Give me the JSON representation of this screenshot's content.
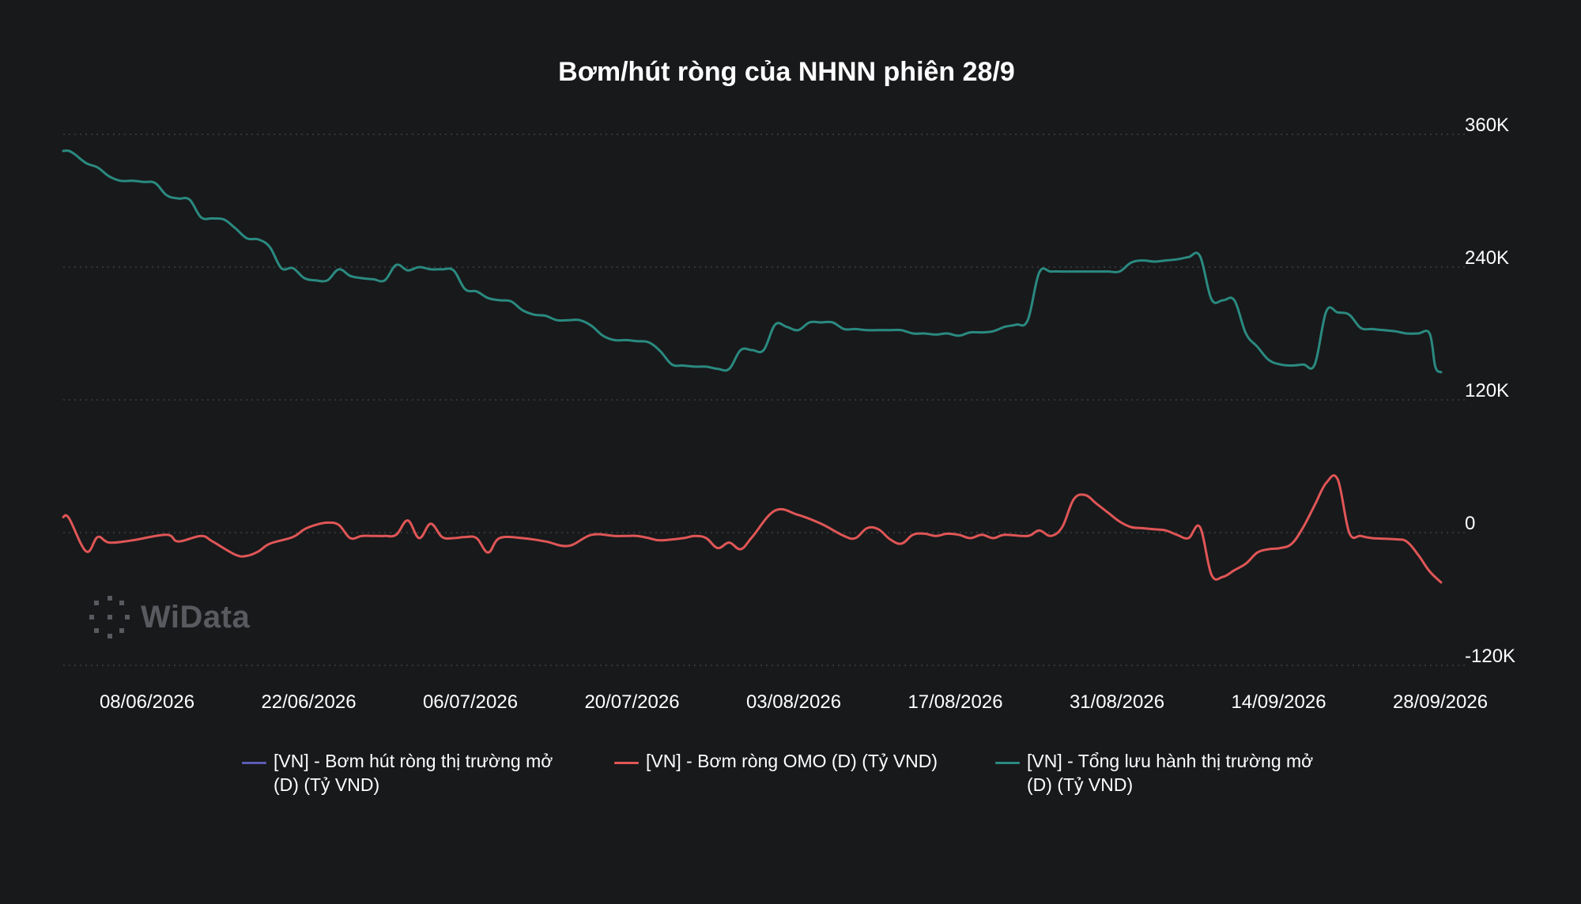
{
  "chart_data": {
    "type": "line",
    "title": "Bơm/hút ròng của NHNN phiên 28/9",
    "x_tick_labels": [
      "08/06/2026",
      "22/06/2026",
      "06/07/2026",
      "20/07/2026",
      "03/08/2026",
      "17/08/2026",
      "31/08/2026",
      "14/09/2026",
      "28/09/2026"
    ],
    "y_tick_labels": [
      "360K",
      "240K",
      "120K",
      "0",
      "-120K"
    ],
    "ylim": [
      -120000,
      360000
    ],
    "y_ticks": [
      360000,
      240000,
      120000,
      0,
      -120000
    ],
    "y_axis_position": "right",
    "grid": true,
    "legend_position": "bottom",
    "series": [
      {
        "name": "[VN] - Bơm hút ròng thị trường mở (D) (Tỷ VND)",
        "color": "#5b5bb5",
        "values": []
      },
      {
        "name": "[VN] - Bơm ròng OMO (D) (Tỷ VND)",
        "color": "#e05656",
        "x": [
          0,
          0.5,
          2,
          3,
          4,
          6,
          9,
          10,
          12,
          13,
          15,
          16,
          17,
          18,
          20,
          21,
          22,
          23,
          24,
          25,
          26,
          27,
          28,
          29,
          30,
          31,
          32,
          33,
          34,
          35,
          36,
          37,
          38,
          40,
          42,
          44,
          46,
          48,
          49,
          50,
          51,
          52,
          54,
          55,
          56,
          57,
          58,
          59,
          60,
          62,
          64,
          66,
          68,
          69,
          70,
          71,
          72,
          73,
          74,
          75,
          76,
          77,
          78,
          79,
          80,
          81,
          82,
          84,
          85,
          86,
          87,
          88,
          89,
          90,
          91,
          92,
          93,
          94,
          95,
          96,
          97,
          98,
          99,
          100,
          101,
          102,
          103,
          104,
          105,
          106,
          107,
          108,
          109,
          110,
          111,
          112,
          113,
          114,
          116,
          117,
          118,
          119,
          120
        ],
        "values": [
          14000,
          13000,
          -17000,
          -4000,
          -9000,
          -7000,
          -2000,
          -8000,
          -3000,
          -8000,
          -20000,
          -21000,
          -17000,
          -10000,
          -4000,
          3000,
          7000,
          9000,
          7000,
          -5000,
          -3000,
          -3000,
          -3000,
          -2000,
          11000,
          -5000,
          8000,
          -4000,
          -5000,
          -4000,
          -5000,
          -18000,
          -5000,
          -5000,
          -8000,
          -12000,
          -2000,
          -3000,
          -3000,
          -3000,
          -5000,
          -7000,
          -5000,
          -3000,
          -5000,
          -14000,
          -9000,
          -15000,
          -4000,
          20000,
          16000,
          8000,
          -3000,
          -5000,
          4000,
          3000,
          -6000,
          -10000,
          -2000,
          -1000,
          -3000,
          -1000,
          -2000,
          -5000,
          -2000,
          -5000,
          -2000,
          -3000,
          2000,
          -3000,
          5000,
          30000,
          34000,
          26000,
          18000,
          10000,
          5000,
          4000,
          3000,
          2000,
          -2000,
          -5000,
          5000,
          -38000,
          -40000,
          -34000,
          -28000,
          -18000,
          -15000,
          -14000,
          -10000,
          5000,
          25000,
          45000,
          48000,
          0,
          -3000,
          -5000,
          -6000,
          -8000,
          -20000,
          -35000,
          -45000
        ]
      },
      {
        "name": "[VN] - Tổng lưu hành thị trường mở (D) (Tỷ VND)",
        "color": "#2a8a80",
        "x": [
          0,
          0.5,
          1,
          2,
          3,
          4,
          5,
          6,
          7,
          8,
          9,
          10,
          11,
          12,
          13,
          14,
          15,
          16,
          17,
          18,
          19,
          20,
          21,
          22,
          23,
          24,
          25,
          26,
          27,
          28,
          29,
          30,
          31,
          32,
          33,
          34,
          35,
          36,
          37,
          38,
          39,
          40,
          41,
          42,
          43,
          44,
          45,
          46,
          47,
          48,
          49,
          50,
          51,
          52,
          53,
          54,
          55,
          56,
          57,
          58,
          59,
          60,
          61,
          62,
          63,
          64,
          65,
          66,
          67,
          68,
          69,
          70,
          71,
          72,
          73,
          74,
          75,
          76,
          77,
          78,
          79,
          80,
          81,
          82,
          83,
          84,
          85,
          86,
          87,
          88,
          89,
          90,
          91,
          92,
          93,
          94,
          95,
          96,
          97,
          98,
          99,
          100,
          101,
          102,
          103,
          104,
          105,
          106,
          107,
          108,
          109,
          110,
          111,
          112,
          113,
          114,
          115,
          116,
          117,
          118,
          119,
          119.5,
          120
        ],
        "values": [
          345000,
          345000,
          342000,
          334000,
          330000,
          322000,
          318000,
          318000,
          317000,
          316000,
          305000,
          302000,
          301000,
          285000,
          284000,
          283000,
          275000,
          266000,
          265000,
          258000,
          239000,
          239000,
          230000,
          228000,
          228000,
          238000,
          232000,
          230000,
          229000,
          228000,
          242000,
          237000,
          240000,
          238000,
          238000,
          237000,
          220000,
          218000,
          212000,
          210000,
          209000,
          201000,
          197000,
          196000,
          192000,
          192000,
          192000,
          187000,
          178000,
          174000,
          174000,
          173000,
          172000,
          164000,
          152000,
          151000,
          150000,
          150000,
          148000,
          148000,
          165000,
          165000,
          165000,
          188000,
          186000,
          183000,
          190000,
          190000,
          190000,
          184000,
          184000,
          183000,
          183000,
          183000,
          183000,
          180000,
          180000,
          179000,
          180000,
          178000,
          181000,
          181000,
          182000,
          186000,
          188000,
          192000,
          235000,
          236000,
          236000,
          236000,
          236000,
          236000,
          236000,
          236000,
          244000,
          246000,
          245000,
          246000,
          247000,
          249000,
          250000,
          211000,
          210000,
          210000,
          180000,
          168000,
          156000,
          152000,
          151000,
          152000,
          152000,
          200000,
          199000,
          197000,
          185000,
          184000,
          183000,
          182000,
          180000,
          180000,
          180000,
          150000,
          145000
        ]
      }
    ]
  },
  "watermark": {
    "brand": "WiData",
    "icon": "dotted-circle-logo-icon"
  }
}
